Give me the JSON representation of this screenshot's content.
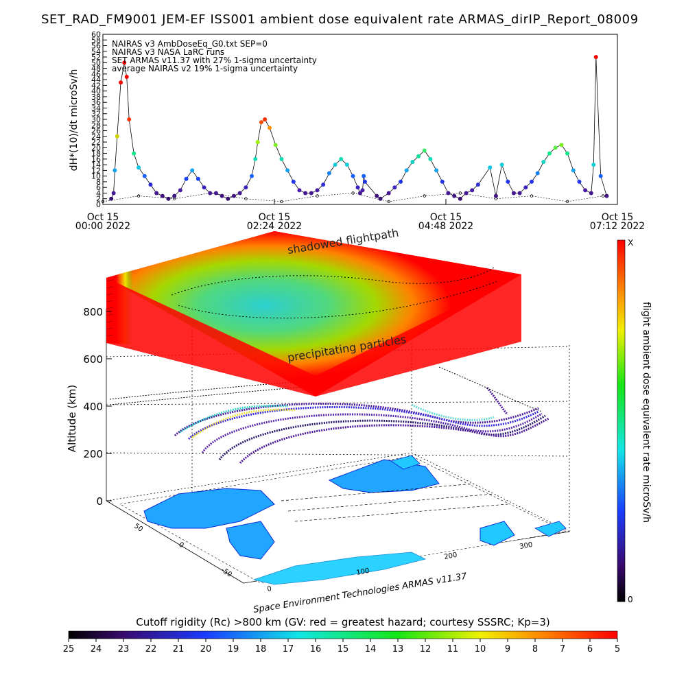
{
  "title": "SET_RAD_FM9001  JEM-EF ISS001 ambient dose equivalent rate ARMAS_dirIP_Report_08009",
  "top_ylabel": "dH*(10)/dt microSv/h",
  "y_ticks": [
    0,
    2,
    4,
    6,
    8,
    10,
    12,
    14,
    16,
    18,
    20,
    22,
    24,
    26,
    28,
    30,
    32,
    34,
    36,
    38,
    40,
    42,
    44,
    46,
    48,
    50,
    52,
    54,
    56,
    58,
    60
  ],
  "x_ticks": [
    {
      "line1": "Oct 15",
      "line2": "00:00 2022"
    },
    {
      "line1": "Oct 15",
      "line2": "02:24 2022"
    },
    {
      "line1": "Oct 15",
      "line2": "04:48 2022"
    },
    {
      "line1": "Oct 15",
      "line2": "07:12 2022"
    }
  ],
  "legend": [
    "NAIRAS v3 AmbDoseEq_G0.txt SEP=0",
    "NAIRAS v3 NASA LaRC runs",
    "SET ARMAS v11.37 with 27% 1-sigma uncertainty",
    "average NAIRAS v2 19% 1-sigma uncertainty"
  ],
  "plane_labels": {
    "shadowed": "shadowed flightpath",
    "precip": "precipitating particles"
  },
  "alt_label": "Altitude (km)",
  "alt_ticks": [
    0,
    200,
    400,
    600,
    800
  ],
  "lat_ticks": [
    50,
    0,
    -50
  ],
  "lon_ticks": [
    0,
    100,
    200,
    300
  ],
  "credit": "Space Environment Technologies ARMAS v11.37",
  "right_colorbar": {
    "label": "flight ambient dose equivalent rate microSv/h",
    "top": "X",
    "bottom": "0"
  },
  "bottom_colorbar": {
    "label": "Cutoff rigidity (Rc) >800 km (GV: red = greatest hazard; courtesy SSSRC; Kp=3)",
    "ticks": [
      25,
      24,
      23,
      22,
      21,
      20,
      19,
      18,
      17,
      16,
      15,
      14,
      13,
      12,
      11,
      10,
      9,
      8,
      7,
      6,
      5
    ]
  },
  "chart_data": [
    {
      "type": "scatter",
      "title": "SET_RAD_FM9001  JEM-EF ISS001 ambient dose equivalent rate ARMAS_dirIP_Report_08009",
      "ylabel": "dH*(10)/dt microSv/h",
      "xlabel": "",
      "ylim": [
        0,
        60
      ],
      "xlim": [
        "2022-10-15T00:00",
        "2022-10-15T07:12"
      ],
      "grid": false,
      "legend_position": "top-left",
      "series": [
        {
          "name": "SET ARMAS v11.37 with 27% 1-sigma uncertainty",
          "x": [
            "2022-10-15T00:07",
            "2022-10-15T00:09",
            "2022-10-15T00:10",
            "2022-10-15T00:12",
            "2022-10-15T00:15",
            "2022-10-15T00:18",
            "2022-10-15T00:20",
            "2022-10-15T00:22",
            "2022-10-15T00:26",
            "2022-10-15T00:30",
            "2022-10-15T00:35",
            "2022-10-15T00:40",
            "2022-10-15T00:45",
            "2022-10-15T00:50",
            "2022-10-15T00:55",
            "2022-10-15T01:00",
            "2022-10-15T01:05",
            "2022-10-15T01:10",
            "2022-10-15T01:15",
            "2022-10-15T01:20",
            "2022-10-15T01:25",
            "2022-10-15T01:30",
            "2022-10-15T01:35",
            "2022-10-15T01:40",
            "2022-10-15T01:45",
            "2022-10-15T01:50",
            "2022-10-15T01:55",
            "2022-10-15T02:00",
            "2022-10-15T02:05",
            "2022-10-15T02:08",
            "2022-10-15T02:10",
            "2022-10-15T02:13",
            "2022-10-15T02:16",
            "2022-10-15T02:20",
            "2022-10-15T02:25",
            "2022-10-15T02:30",
            "2022-10-15T02:35",
            "2022-10-15T02:40",
            "2022-10-15T02:45",
            "2022-10-15T02:50",
            "2022-10-15T02:55",
            "2022-10-15T03:00",
            "2022-10-15T03:05",
            "2022-10-15T03:10",
            "2022-10-15T03:15",
            "2022-10-15T03:20",
            "2022-10-15T03:25",
            "2022-10-15T03:30",
            "2022-10-15T03:34",
            "2022-10-15T03:36",
            "2022-10-15T03:38",
            "2022-10-15T03:39",
            "2022-10-15T03:40",
            "2022-10-15T03:50",
            "2022-10-15T03:53",
            "2022-10-15T04:00",
            "2022-10-15T04:05",
            "2022-10-15T04:10",
            "2022-10-15T04:15",
            "2022-10-15T04:20",
            "2022-10-15T04:25",
            "2022-10-15T04:30",
            "2022-10-15T04:35",
            "2022-10-15T04:40",
            "2022-10-15T04:45",
            "2022-10-15T04:50",
            "2022-10-15T04:55",
            "2022-10-15T05:00",
            "2022-10-15T05:05",
            "2022-10-15T05:10",
            "2022-10-15T05:15",
            "2022-10-15T05:25",
            "2022-10-15T05:30",
            "2022-10-15T05:35",
            "2022-10-15T05:40",
            "2022-10-15T05:45",
            "2022-10-15T05:50",
            "2022-10-15T05:55",
            "2022-10-15T06:00",
            "2022-10-15T06:05",
            "2022-10-15T06:10",
            "2022-10-15T06:15",
            "2022-10-15T06:20",
            "2022-10-15T06:25",
            "2022-10-15T06:30",
            "2022-10-15T06:35",
            "2022-10-15T06:40",
            "2022-10-15T06:45",
            "2022-10-15T06:50",
            "2022-10-15T06:52",
            "2022-10-15T06:54",
            "2022-10-15T06:58",
            "2022-10-15T07:03"
          ],
          "values": [
            2,
            4,
            12,
            24,
            43,
            50,
            45,
            30,
            18,
            13,
            10,
            7,
            4,
            3,
            2,
            3,
            5,
            9,
            12,
            9,
            6,
            4,
            4,
            3,
            2,
            3,
            4,
            6,
            10,
            16,
            22,
            29,
            30,
            27,
            21,
            16,
            12,
            8,
            5,
            4,
            4,
            5,
            7,
            11,
            14,
            16,
            14,
            10,
            6,
            4,
            5,
            10,
            8,
            3,
            2,
            4,
            6,
            8,
            12,
            15,
            17,
            19,
            16,
            12,
            8,
            4,
            3,
            2,
            4,
            5,
            7,
            13,
            3,
            14,
            8,
            4,
            4,
            6,
            8,
            11,
            15,
            18,
            20,
            21,
            18,
            12,
            8,
            5,
            4,
            14,
            52,
            10,
            3
          ]
        },
        {
          "name": "average NAIRAS v2 19% 1-sigma uncertainty",
          "x": [
            "2022-10-15T00:00",
            "2022-10-15T00:30",
            "2022-10-15T01:00",
            "2022-10-15T01:30",
            "2022-10-15T02:00",
            "2022-10-15T02:30",
            "2022-10-15T03:00",
            "2022-10-15T03:30",
            "2022-10-15T04:00",
            "2022-10-15T04:30",
            "2022-10-15T05:00",
            "2022-10-15T05:30",
            "2022-10-15T06:00",
            "2022-10-15T06:30",
            "2022-10-15T07:00"
          ],
          "values": [
            1,
            3,
            2,
            4,
            2,
            1,
            3,
            4,
            1,
            3,
            4,
            2,
            3,
            1,
            3
          ]
        }
      ]
    },
    {
      "type": "heatmap",
      "title": "",
      "zlabel": "Altitude (km)",
      "z_ticks": [
        0,
        200,
        400,
        600,
        800
      ],
      "lat_ticks": [
        50,
        0,
        -50
      ],
      "lon_ticks": [
        0,
        100,
        200,
        300
      ],
      "colorbar_label": "flight ambient dose equivalent rate microSv/h",
      "colorbar_range": [
        "0",
        "X"
      ],
      "plane_annotations": [
        "shadowed flightpath",
        "precipitating particles"
      ]
    },
    {
      "type": "heatmap",
      "title": "Cutoff rigidity (Rc) >800 km (GV: red = greatest hazard; courtesy SSSRC; Kp=3)",
      "colorbar_ticks": [
        25,
        24,
        23,
        22,
        21,
        20,
        19,
        18,
        17,
        16,
        15,
        14,
        13,
        12,
        11,
        10,
        9,
        8,
        7,
        6,
        5
      ],
      "colorbar_range": [
        25,
        5
      ]
    }
  ]
}
